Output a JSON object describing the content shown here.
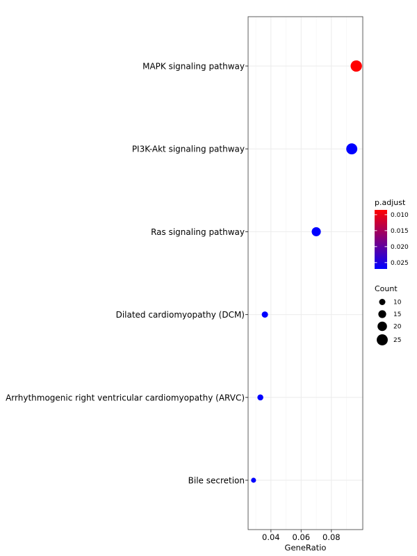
{
  "chart_data": {
    "type": "scatter",
    "title": "",
    "xlabel": "GeneRatio",
    "ylabel": "",
    "xlim": [
      0.0249,
      0.1008
    ],
    "xticks": [
      0.04,
      0.06,
      0.08
    ],
    "xtick_labels": [
      "0.04",
      "0.06",
      "0.08"
    ],
    "categories": [
      "MAPK signaling pathway",
      "PI3K-Akt signaling pathway",
      "Ras signaling pathway",
      "Dilated cardiomyopathy (DCM)",
      "Arrhythmogenic right ventricular cardiomyopathy (ARVC)",
      "Bile secretion"
    ],
    "points": [
      {
        "category": "MAPK signaling pathway",
        "gene_ratio": 0.0965,
        "count": 26,
        "p_adjust": 0.0085
      },
      {
        "category": "PI3K-Akt signaling pathway",
        "gene_ratio": 0.0935,
        "count": 25,
        "p_adjust": 0.027
      },
      {
        "category": "Ras signaling pathway",
        "gene_ratio": 0.07,
        "count": 19,
        "p_adjust": 0.027
      },
      {
        "category": "Dilated cardiomyopathy (DCM)",
        "gene_ratio": 0.036,
        "count": 10,
        "p_adjust": 0.027
      },
      {
        "category": "Arrhythmogenic right ventricular cardiomyopathy (ARVC)",
        "gene_ratio": 0.033,
        "count": 9,
        "p_adjust": 0.027
      },
      {
        "category": "Bile secretion",
        "gene_ratio": 0.0285,
        "count": 6,
        "p_adjust": 0.027
      }
    ],
    "grid": true,
    "legend_position": "right",
    "color_legend": {
      "title": "p.adjust",
      "low_color": "#ff0000",
      "high_color": "#0000ff",
      "range": [
        0.0085,
        0.027
      ],
      "ticks": [
        0.01,
        0.015,
        0.02,
        0.025
      ],
      "tick_labels": [
        "0.010",
        "0.015",
        "0.020",
        "0.025"
      ]
    },
    "size_legend": {
      "title": "Count",
      "values": [
        10,
        15,
        20,
        25
      ],
      "labels": [
        "10",
        "15",
        "20",
        "25"
      ]
    }
  }
}
